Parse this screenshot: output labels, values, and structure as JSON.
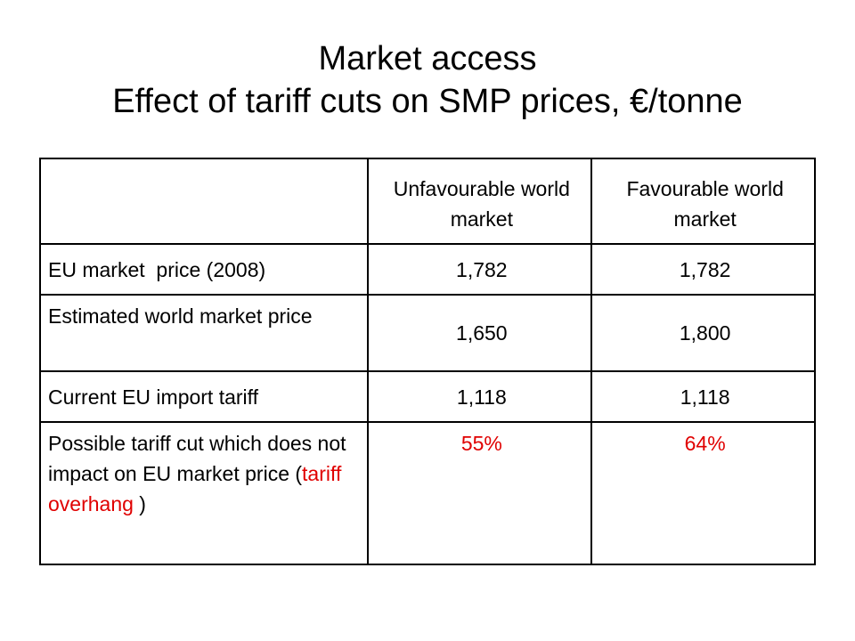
{
  "title": {
    "line1": "Market access",
    "line2": "Effect of tariff cuts on SMP prices, €/tonne"
  },
  "table": {
    "headers": [
      "",
      "Unfavourable world market",
      "Favourable world market"
    ],
    "rows": [
      {
        "label": "EU market  price (2008)",
        "unfavourable": "1,782",
        "favourable": "1,782"
      },
      {
        "label": "Estimated world market price",
        "unfavourable": "1,650",
        "favourable": "1,800"
      },
      {
        "label": "Current EU import tariff",
        "unfavourable": "1,118",
        "favourable": "1,118"
      },
      {
        "label_prefix": "Possible tariff cut which does not impact on EU market price (",
        "label_highlight": "tariff overhang",
        "label_suffix": " )",
        "unfavourable": "55%",
        "favourable": "64%"
      }
    ]
  },
  "colors": {
    "highlight": "#e00000",
    "text": "#000000",
    "border": "#000000"
  }
}
